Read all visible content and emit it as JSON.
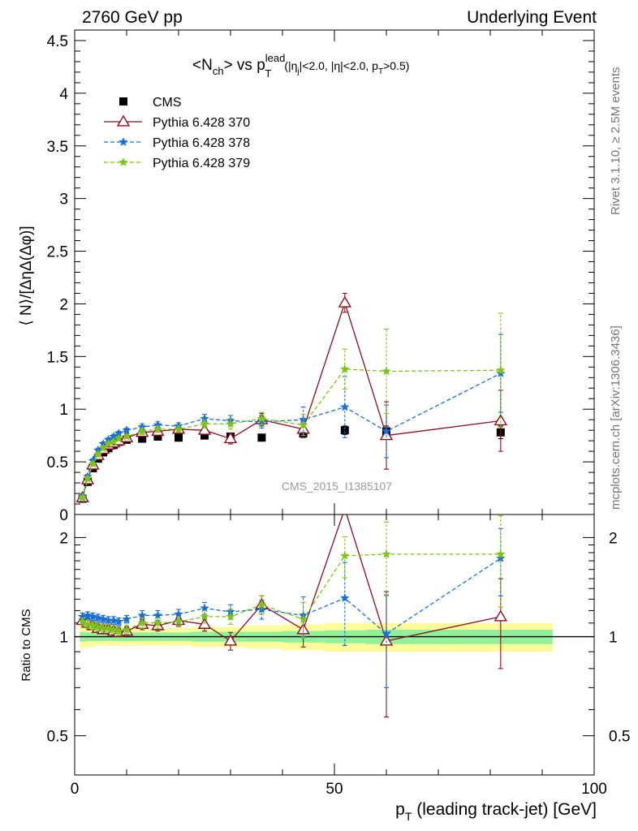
{
  "header": {
    "left_label": "2760 GeV pp",
    "right_label": "Underlying Event"
  },
  "side_labels": {
    "rivet": "Rivet 3.1.10, ≥ 2.5M events",
    "mcplots": "mcplots.cern.ch [arXiv:1306.3436]"
  },
  "watermark": "CMS_2015_I1385107",
  "chart_data": [
    {
      "type": "scatter",
      "panel": "main",
      "title_parts": {
        "prefix": "<N",
        "sub1": "ch",
        "mid": "> vs p",
        "sub2": "T",
        "sup2": "lead",
        "cut_a": "(|η",
        "sub3": "j",
        "cut_b": "|<2.0, |η|<2.0, p",
        "sub4": "T",
        "cut_c": ">0.5)"
      },
      "xlabel": "",
      "ylabel": "⟨ N⟩/[ΔηΔ(Δφ)]",
      "xlim": [
        0,
        100
      ],
      "ylim": [
        0,
        4.6
      ],
      "yticks": [
        0,
        0.5,
        1,
        1.5,
        2,
        2.5,
        3,
        3.5,
        4,
        4.5
      ],
      "ytick_labels": [
        "0",
        "0.5",
        "1",
        "1.5",
        "2",
        "2.5",
        "3",
        "3.5",
        "4",
        "4.5"
      ],
      "legend_position": "top-left",
      "series": [
        {
          "name": "CMS",
          "color": "#000000",
          "style": "square",
          "x": [
            1.5,
            2.5,
            3.5,
            4.5,
            5.5,
            6.5,
            7.5,
            8.5,
            10,
            13,
            16,
            20,
            25,
            30,
            36,
            44,
            52,
            60,
            82
          ],
          "y": [
            0.15,
            0.31,
            0.44,
            0.53,
            0.59,
            0.63,
            0.66,
            0.69,
            0.71,
            0.72,
            0.74,
            0.73,
            0.75,
            0.74,
            0.73,
            0.77,
            0.8,
            0.79,
            0.78
          ],
          "yerr": [
            0.02,
            0.02,
            0.02,
            0.02,
            0.02,
            0.02,
            0.02,
            0.02,
            0.02,
            0.02,
            0.02,
            0.02,
            0.02,
            0.02,
            0.02,
            0.03,
            0.04,
            0.05,
            0.06
          ]
        },
        {
          "name": "Pythia 6.428 370",
          "color": "#8b0f1e",
          "style": "open-triangle-solid-line",
          "x": [
            1.5,
            2.5,
            3.5,
            4.5,
            5.5,
            6.5,
            7.5,
            8.5,
            10,
            13,
            16,
            20,
            25,
            30,
            36,
            44,
            52,
            60,
            82
          ],
          "y": [
            0.16,
            0.33,
            0.47,
            0.56,
            0.62,
            0.66,
            0.68,
            0.7,
            0.73,
            0.78,
            0.79,
            0.81,
            0.8,
            0.72,
            0.9,
            0.81,
            2.01,
            0.75,
            0.89
          ],
          "yerr": [
            0.02,
            0.02,
            0.02,
            0.02,
            0.02,
            0.02,
            0.02,
            0.02,
            0.02,
            0.03,
            0.03,
            0.03,
            0.04,
            0.05,
            0.06,
            0.08,
            0.09,
            0.32,
            0.29
          ]
        },
        {
          "name": "Pythia 6.428 378",
          "color": "#1a6fd6",
          "style": "star-dashed-line",
          "x": [
            1.5,
            2.5,
            3.5,
            4.5,
            5.5,
            6.5,
            7.5,
            8.5,
            10,
            13,
            16,
            20,
            25,
            30,
            36,
            44,
            52,
            60,
            82
          ],
          "y": [
            0.17,
            0.36,
            0.51,
            0.61,
            0.67,
            0.71,
            0.74,
            0.77,
            0.8,
            0.83,
            0.85,
            0.84,
            0.91,
            0.89,
            0.88,
            0.9,
            1.02,
            0.79,
            1.34
          ],
          "yerr": [
            0.02,
            0.02,
            0.02,
            0.02,
            0.02,
            0.02,
            0.02,
            0.02,
            0.02,
            0.03,
            0.03,
            0.03,
            0.04,
            0.05,
            0.06,
            0.12,
            0.29,
            0.25,
            0.37
          ]
        },
        {
          "name": "Pythia 6.428 379",
          "color": "#7ec21a",
          "style": "star-dashed-line",
          "x": [
            1.5,
            2.5,
            3.5,
            4.5,
            5.5,
            6.5,
            7.5,
            8.5,
            10,
            13,
            16,
            20,
            25,
            30,
            36,
            44,
            52,
            60,
            82
          ],
          "y": [
            0.16,
            0.34,
            0.48,
            0.57,
            0.63,
            0.67,
            0.69,
            0.72,
            0.74,
            0.79,
            0.81,
            0.81,
            0.86,
            0.86,
            0.91,
            0.85,
            1.38,
            1.36,
            1.37
          ],
          "yerr": [
            0.02,
            0.02,
            0.02,
            0.02,
            0.02,
            0.02,
            0.02,
            0.02,
            0.02,
            0.03,
            0.03,
            0.03,
            0.04,
            0.05,
            0.06,
            0.1,
            0.19,
            0.4,
            0.54
          ]
        }
      ]
    },
    {
      "type": "scatter",
      "panel": "ratio",
      "xlabel_parts": {
        "main": "p",
        "sub": "T",
        "rest": " (leading track-jet) [GeV]"
      },
      "ylabel": "Ratio to CMS",
      "xlim": [
        0,
        100
      ],
      "ylim": [
        0.38,
        2.35
      ],
      "log_y": true,
      "xticks": [
        0,
        50,
        100
      ],
      "xtick_labels": [
        "0",
        "50",
        "100"
      ],
      "yticks": [
        0.5,
        1,
        2
      ],
      "ytick_labels": [
        "0.5",
        "1",
        "2"
      ],
      "reference_band": {
        "x": [
          1.5,
          2.5,
          3.5,
          4.5,
          5.5,
          6.5,
          7.5,
          8.5,
          10,
          13,
          16,
          20,
          25,
          30,
          36,
          44,
          52,
          60,
          82
        ],
        "stat": [
          0.035,
          0.03,
          0.03,
          0.03,
          0.03,
          0.03,
          0.03,
          0.03,
          0.03,
          0.03,
          0.03,
          0.03,
          0.035,
          0.035,
          0.035,
          0.04,
          0.045,
          0.05,
          0.05
        ],
        "total": [
          0.08,
          0.07,
          0.07,
          0.06,
          0.06,
          0.06,
          0.06,
          0.06,
          0.06,
          0.06,
          0.06,
          0.06,
          0.07,
          0.07,
          0.08,
          0.09,
          0.1,
          0.1,
          0.1
        ]
      },
      "series": [
        {
          "name": "Pythia 6.428 370",
          "color": "#8b0f1e",
          "style": "open-triangle-solid-line",
          "x": [
            1.5,
            2.5,
            3.5,
            4.5,
            5.5,
            6.5,
            7.5,
            8.5,
            10,
            13,
            16,
            20,
            25,
            30,
            36,
            44,
            52,
            60,
            82
          ],
          "y": [
            1.12,
            1.1,
            1.08,
            1.06,
            1.05,
            1.05,
            1.04,
            1.03,
            1.04,
            1.09,
            1.08,
            1.12,
            1.09,
            0.97,
            1.25,
            1.05,
            2.45,
            0.97,
            1.15
          ],
          "yerr": [
            0.03,
            0.03,
            0.03,
            0.03,
            0.03,
            0.03,
            0.03,
            0.03,
            0.03,
            0.04,
            0.04,
            0.04,
            0.05,
            0.06,
            0.08,
            0.12,
            0.1,
            0.4,
            0.35
          ]
        },
        {
          "name": "Pythia 6.428 378",
          "color": "#1a6fd6",
          "style": "star-dashed-line",
          "x": [
            1.5,
            2.5,
            3.5,
            4.5,
            5.5,
            6.5,
            7.5,
            8.5,
            10,
            13,
            16,
            20,
            25,
            30,
            36,
            44,
            52,
            60,
            82
          ],
          "y": [
            1.15,
            1.16,
            1.15,
            1.14,
            1.13,
            1.12,
            1.12,
            1.11,
            1.13,
            1.16,
            1.16,
            1.17,
            1.22,
            1.19,
            1.21,
            1.16,
            1.31,
            1.02,
            1.73
          ],
          "yerr": [
            0.03,
            0.03,
            0.03,
            0.03,
            0.03,
            0.03,
            0.03,
            0.03,
            0.03,
            0.04,
            0.04,
            0.04,
            0.05,
            0.06,
            0.08,
            0.16,
            0.37,
            0.32,
            0.4
          ]
        },
        {
          "name": "Pythia 6.428 379",
          "color": "#7ec21a",
          "style": "star-dashed-line",
          "x": [
            1.5,
            2.5,
            3.5,
            4.5,
            5.5,
            6.5,
            7.5,
            8.5,
            10,
            13,
            16,
            20,
            25,
            30,
            36,
            44,
            52,
            60,
            82
          ],
          "y": [
            1.11,
            1.09,
            1.08,
            1.07,
            1.06,
            1.06,
            1.05,
            1.04,
            1.05,
            1.1,
            1.1,
            1.11,
            1.15,
            1.15,
            1.25,
            1.13,
            1.76,
            1.78,
            1.78
          ],
          "yerr": [
            0.03,
            0.03,
            0.03,
            0.03,
            0.03,
            0.03,
            0.03,
            0.03,
            0.03,
            0.04,
            0.04,
            0.04,
            0.05,
            0.06,
            0.08,
            0.14,
            0.25,
            0.45,
            0.55
          ]
        }
      ]
    }
  ]
}
